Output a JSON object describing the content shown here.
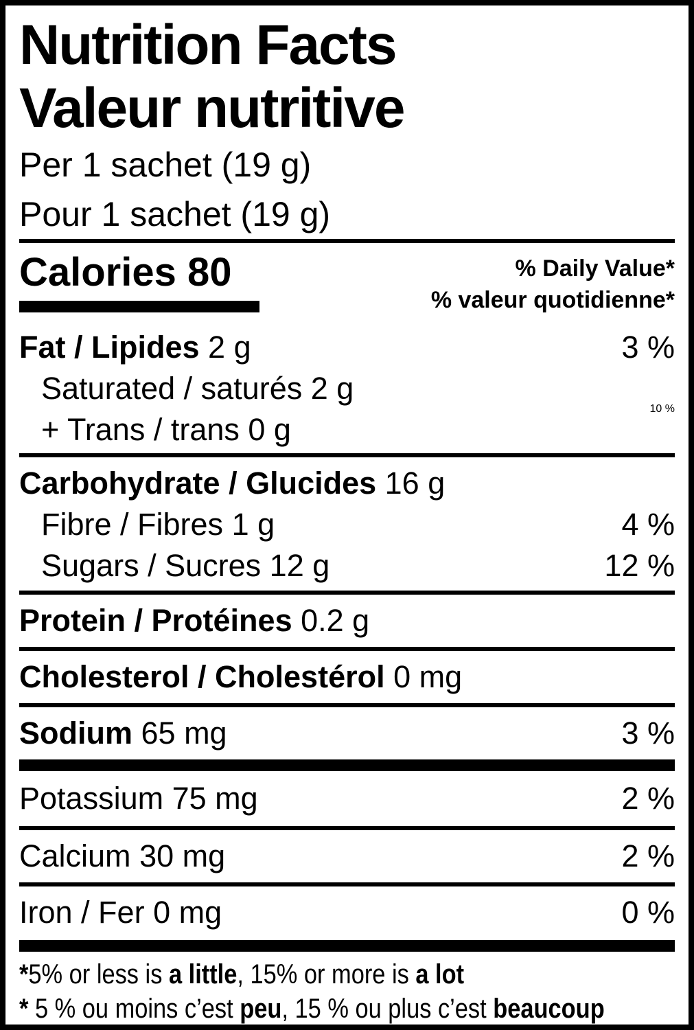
{
  "label": {
    "title_en": "Nutrition Facts",
    "title_fr": "Valeur nutritive",
    "serving_en": "Per 1 sachet (19 g)",
    "serving_fr": "Pour 1 sachet (19 g)",
    "calories_label": "Calories",
    "calories_value": "80",
    "daily_value_header_en": "% Daily Value*",
    "daily_value_header_fr": "% valeur quotidienne*",
    "colors": {
      "ink": "#000000",
      "background": "#ffffff"
    },
    "rows": {
      "fat": {
        "name": "Fat / Lipides",
        "amount": "2 g",
        "pct": "3 %"
      },
      "saturated": {
        "name": "Saturated / saturés",
        "amount": "2 g"
      },
      "trans": {
        "name": "+ Trans / trans",
        "amount": "0 g"
      },
      "sat_trans_pct": "10 %",
      "carbohydrate": {
        "name": "Carbohydrate / Glucides",
        "amount": "16 g"
      },
      "fibre": {
        "name": "Fibre / Fibres",
        "amount": "1 g",
        "pct": "4 %"
      },
      "sugars": {
        "name": "Sugars / Sucres",
        "amount": "12 g",
        "pct": "12 %"
      },
      "protein": {
        "name": "Protein / Protéines",
        "amount": "0.2 g"
      },
      "cholesterol": {
        "name": "Cholesterol / Cholestérol",
        "amount": "0 mg"
      },
      "sodium": {
        "name": "Sodium",
        "amount": "65 mg",
        "pct": "3 %"
      },
      "potassium": {
        "name": "Potassium",
        "amount": "75 mg",
        "pct": "2 %"
      },
      "calcium": {
        "name": "Calcium",
        "amount": "30 mg",
        "pct": "2 %"
      },
      "iron": {
        "name": "Iron / Fer",
        "amount": "0 mg",
        "pct": "0 %"
      }
    },
    "footnote_en": {
      "star": "*",
      "t1": "5% or less is ",
      "b1": "a little",
      "t2": ", 15% or more is ",
      "b2": "a lot"
    },
    "footnote_fr": {
      "star": "*",
      "t1": " 5 % ou moins c’est ",
      "b1": "peu",
      "t2": ", 15 % ou plus c’est ",
      "b2": "beaucoup"
    }
  }
}
